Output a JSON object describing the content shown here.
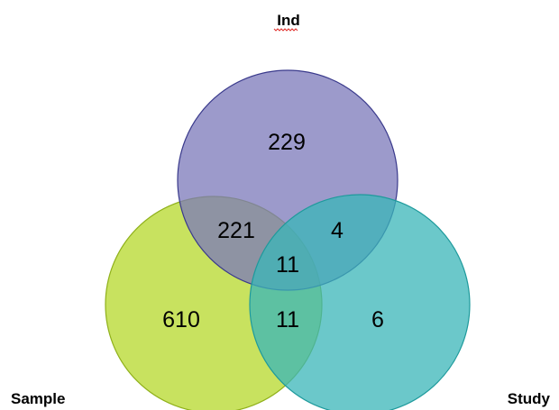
{
  "chart_data": {
    "type": "venn",
    "sets": [
      {
        "key": "ind",
        "name": "Ind",
        "color": "#7b78ba",
        "stroke": "#3a3a8c"
      },
      {
        "key": "sample",
        "name": "Sample",
        "color": "#b6d82a",
        "stroke": "#8fb01a"
      },
      {
        "key": "study",
        "name": "Study",
        "color": "#3ab6b8",
        "stroke": "#1e9a9c"
      }
    ],
    "regions": [
      {
        "key": "ind_only",
        "sets": [
          "Ind"
        ],
        "value": "229"
      },
      {
        "key": "sample_only",
        "sets": [
          "Sample"
        ],
        "value": "610"
      },
      {
        "key": "study_only",
        "sets": [
          "Study"
        ],
        "value": "6"
      },
      {
        "key": "ind_sample",
        "sets": [
          "Ind",
          "Sample"
        ],
        "value": "221"
      },
      {
        "key": "ind_study",
        "sets": [
          "Ind",
          "Study"
        ],
        "value": "4"
      },
      {
        "key": "sample_study",
        "sets": [
          "Sample",
          "Study"
        ],
        "value": "11"
      },
      {
        "key": "all",
        "sets": [
          "Ind",
          "Sample",
          "Study"
        ],
        "value": "11"
      }
    ]
  }
}
